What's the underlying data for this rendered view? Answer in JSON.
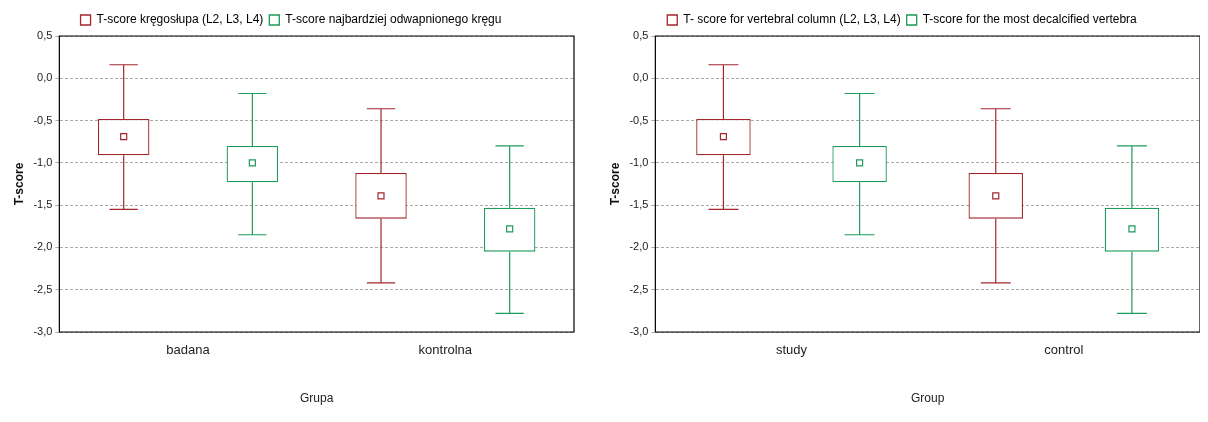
{
  "chart_data": [
    {
      "type": "box",
      "xlabel": "Grupa",
      "ylabel": "T-score",
      "categories": [
        "badana",
        "kontrolna"
      ],
      "ylim": [
        -3.0,
        0.5
      ],
      "yticks": [
        {
          "value": 0.5,
          "label": "0,5"
        },
        {
          "value": 0,
          "label": "0,0"
        },
        {
          "value": -0.5,
          "label": "-0,5"
        },
        {
          "value": -1,
          "label": "-1,0"
        },
        {
          "value": -1.5,
          "label": "-1,5"
        },
        {
          "value": -2,
          "label": "-2,0"
        },
        {
          "value": -2.5,
          "label": "-2,5"
        },
        {
          "value": -3,
          "label": "-3,0"
        }
      ],
      "grid": "y",
      "legend": "top",
      "marker": "square",
      "series": [
        {
          "name": "T-score kręgosłupa (L2, L3, L4)",
          "color": "#a3262e",
          "boxes": [
            {
              "low": -1.55,
              "q1": -0.91,
              "median": -0.69,
              "q3": -0.48,
              "high": 0.16
            },
            {
              "low": -2.42,
              "q1": -1.66,
              "median": -1.39,
              "q3": -1.12,
              "high": -0.36
            }
          ]
        },
        {
          "name": "T-score najbardziej odwapnionego kręgu",
          "color": "#1e9a5a",
          "boxes": [
            {
              "low": -1.85,
              "q1": -1.23,
              "median": -1.0,
              "q3": -0.8,
              "high": -0.18
            },
            {
              "low": -2.78,
              "q1": -2.05,
              "median": -1.78,
              "q3": -1.53,
              "high": -0.8
            }
          ]
        }
      ]
    },
    {
      "type": "box",
      "xlabel": "Group",
      "ylabel": "T-score",
      "categories": [
        "study",
        "control"
      ],
      "ylim": [
        -3.0,
        0.5
      ],
      "yticks": [
        {
          "value": 0.5,
          "label": "0,5"
        },
        {
          "value": 0,
          "label": "0,0"
        },
        {
          "value": -0.5,
          "label": "-0,5"
        },
        {
          "value": -1,
          "label": "-1,0"
        },
        {
          "value": -1.5,
          "label": "-1,5"
        },
        {
          "value": -2,
          "label": "-2,0"
        },
        {
          "value": -2.5,
          "label": "-2,5"
        },
        {
          "value": -3,
          "label": "-3,0"
        }
      ],
      "grid": "y",
      "legend": "top",
      "marker": "square",
      "series": [
        {
          "name": "T- score for vertebral column (L2, L3, L4)",
          "color": "#a3262e",
          "boxes": [
            {
              "low": -1.55,
              "q1": -0.91,
              "median": -0.69,
              "q3": -0.48,
              "high": 0.16
            },
            {
              "low": -2.42,
              "q1": -1.66,
              "median": -1.39,
              "q3": -1.12,
              "high": -0.36
            }
          ]
        },
        {
          "name": "T-score for the most decalcified vertebra",
          "color": "#1e9a5a",
          "boxes": [
            {
              "low": -1.85,
              "q1": -1.23,
              "median": -1.0,
              "q3": -0.8,
              "high": -0.18
            },
            {
              "low": -2.78,
              "q1": -2.05,
              "median": -1.78,
              "q3": -1.53,
              "high": -0.8
            }
          ]
        }
      ]
    }
  ]
}
